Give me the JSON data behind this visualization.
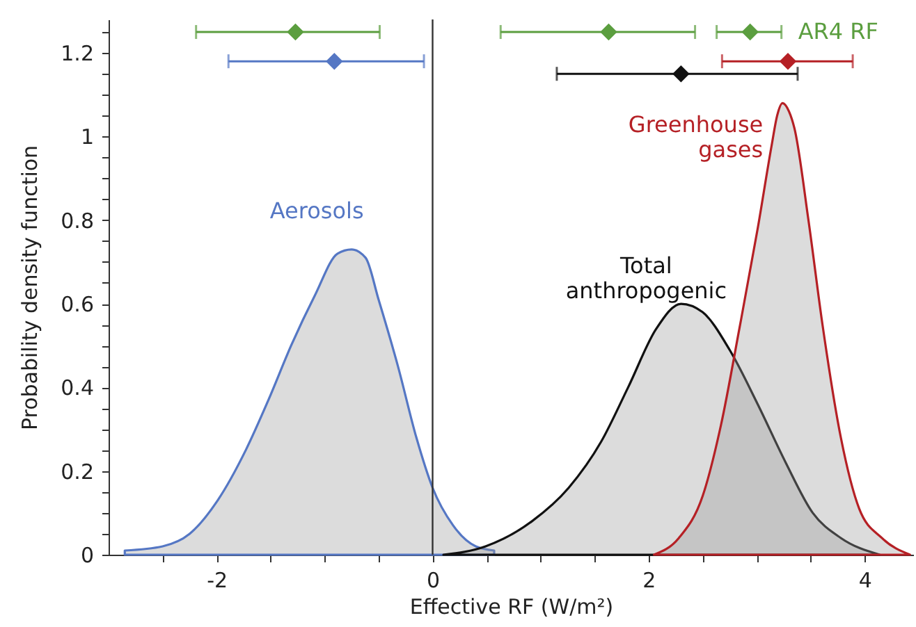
{
  "chart_data": {
    "type": "area",
    "xlabel": "Effective RF (W/m²)",
    "ylabel": "Probability density function",
    "xlim": [
      -3,
      4.45
    ],
    "ylim": [
      0,
      1.28
    ],
    "xticks": [
      {
        "value": -2.5,
        "label": null
      },
      -2,
      {
        "value": -1.5,
        "label": null
      },
      {
        "value": -1,
        "label": null
      },
      {
        "value": -0.5,
        "label": null
      },
      0,
      {
        "value": 0.5,
        "label": null
      },
      {
        "value": 1,
        "label": null
      },
      {
        "value": 1.5,
        "label": null
      },
      2,
      {
        "value": 2.5,
        "label": null
      },
      {
        "value": 3,
        "label": null
      },
      {
        "value": 3.5,
        "label": null
      },
      4
    ],
    "yticks": [
      0,
      {
        "value": 0.05,
        "label": null
      },
      {
        "value": 0.1,
        "label": null
      },
      {
        "value": 0.15,
        "label": null
      },
      0.2,
      {
        "value": 0.25,
        "label": null
      },
      {
        "value": 0.3,
        "label": null
      },
      {
        "value": 0.35,
        "label": null
      },
      0.4,
      {
        "value": 0.45,
        "label": null
      },
      {
        "value": 0.5,
        "label": null
      },
      {
        "value": 0.55,
        "label": null
      },
      0.6,
      {
        "value": 0.65,
        "label": null
      },
      {
        "value": 0.7,
        "label": null
      },
      {
        "value": 0.75,
        "label": null
      },
      0.8,
      {
        "value": 0.85,
        "label": null
      },
      {
        "value": 0.9,
        "label": null
      },
      {
        "value": 0.95,
        "label": null
      },
      1.0,
      {
        "value": 1.05,
        "label": null
      },
      {
        "value": 1.1,
        "label": null
      },
      {
        "value": 1.15,
        "label": null
      },
      1.2,
      {
        "value": 1.25,
        "label": null
      }
    ],
    "grid": false,
    "ref_lines": [
      {
        "axis": "x",
        "value": 0,
        "color": "#333333"
      }
    ],
    "series": [
      {
        "name": "Aerosols",
        "color": "#5577c4",
        "x": [
          -2.85,
          -2.5,
          -2.25,
          -1.99,
          -1.73,
          -1.52,
          -1.31,
          -1.09,
          -0.88,
          -0.75,
          -0.62,
          -0.5,
          -0.32,
          -0.15,
          0.0,
          0.19,
          0.4,
          0.57
        ],
        "values": [
          0.01,
          0.02,
          0.05,
          0.13,
          0.25,
          0.37,
          0.5,
          0.62,
          0.72,
          0.73,
          0.71,
          0.61,
          0.45,
          0.28,
          0.16,
          0.07,
          0.02,
          0.01
        ]
      },
      {
        "name": "Total anthropogenic",
        "color": "#111111",
        "x": [
          0.1,
          0.49,
          0.92,
          1.26,
          1.56,
          1.81,
          2.07,
          2.3,
          2.5,
          2.75,
          3.01,
          3.27,
          3.52,
          3.78,
          4.14
        ],
        "values": [
          0.0,
          0.02,
          0.08,
          0.16,
          0.27,
          0.4,
          0.54,
          0.6,
          0.58,
          0.49,
          0.36,
          0.22,
          0.1,
          0.04,
          0.0
        ]
      },
      {
        "name": "Greenhouse gases",
        "color": "#b52025",
        "x": [
          2.05,
          2.28,
          2.5,
          2.67,
          2.84,
          3.01,
          3.14,
          3.19,
          3.24,
          3.3,
          3.35,
          3.48,
          3.61,
          3.78,
          3.95,
          4.16,
          4.42
        ],
        "values": [
          0.0,
          0.04,
          0.14,
          0.31,
          0.54,
          0.78,
          0.98,
          1.05,
          1.08,
          1.06,
          1.02,
          0.8,
          0.55,
          0.28,
          0.11,
          0.04,
          0.0
        ]
      },
      {
        "type": "scatter",
        "name": "AR4 RF",
        "color": "#5b9e3f",
        "marker": "diamond",
        "x": [
          -1.27,
          1.63,
          2.94
        ],
        "values": [
          1.25,
          1.25,
          1.25
        ],
        "xerrors": [
          [
            -2.19,
            -0.49
          ],
          [
            0.63,
            2.43
          ],
          [
            2.63,
            3.23
          ]
        ]
      },
      {
        "type": "scatter",
        "color": "#5577c4",
        "marker": "diamond",
        "x": [
          -0.91
        ],
        "values": [
          1.18
        ],
        "xerrors": [
          [
            -1.89,
            -0.08
          ]
        ]
      },
      {
        "type": "scatter",
        "color": "#111111",
        "marker": "diamond",
        "x": [
          2.3
        ],
        "values": [
          1.15
        ],
        "xerrors": [
          [
            1.15,
            3.38
          ]
        ]
      },
      {
        "type": "scatter",
        "color": "#b52025",
        "marker": "diamond",
        "x": [
          3.29
        ],
        "values": [
          1.18
        ],
        "xerrors": [
          [
            2.68,
            3.89
          ]
        ]
      }
    ]
  }
}
